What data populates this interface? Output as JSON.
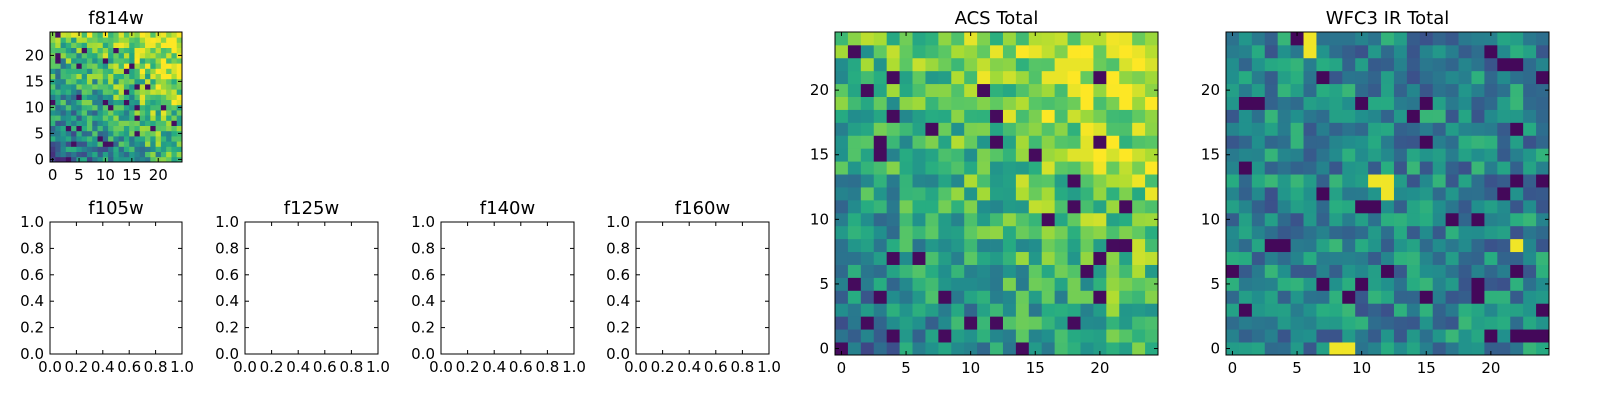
{
  "chart_data": [
    {
      "id": "f814w",
      "type": "heatmap",
      "title": "f814w",
      "grid_size": [
        25,
        25
      ],
      "xlim": [
        -0.5,
        24.5
      ],
      "ylim": [
        -0.5,
        24.5
      ],
      "xticks": [
        0,
        5,
        10,
        15,
        20
      ],
      "yticks": [
        0,
        5,
        10,
        15,
        20
      ],
      "colormap": "viridis",
      "value_range": [
        0,
        1
      ],
      "origin": "lower",
      "pattern": "noisy field, brighter toward upper-right"
    },
    {
      "id": "f105w",
      "type": "empty",
      "title": "f105w",
      "xlim": [
        0,
        1
      ],
      "ylim": [
        0,
        1
      ],
      "xticks": [
        "0.0",
        "0.2",
        "0.4",
        "0.6",
        "0.8",
        "1.0"
      ],
      "yticks": [
        "0.0",
        "0.2",
        "0.4",
        "0.6",
        "0.8",
        "1.0"
      ]
    },
    {
      "id": "f125w",
      "type": "empty",
      "title": "f125w",
      "xlim": [
        0,
        1
      ],
      "ylim": [
        0,
        1
      ],
      "xticks": [
        "0.0",
        "0.2",
        "0.4",
        "0.6",
        "0.8",
        "1.0"
      ],
      "yticks": [
        "0.0",
        "0.2",
        "0.4",
        "0.6",
        "0.8",
        "1.0"
      ]
    },
    {
      "id": "f140w",
      "type": "empty",
      "title": "f140w",
      "xlim": [
        0,
        1
      ],
      "ylim": [
        0,
        1
      ],
      "xticks": [
        "0.0",
        "0.2",
        "0.4",
        "0.6",
        "0.8",
        "1.0"
      ],
      "yticks": [
        "0.0",
        "0.2",
        "0.4",
        "0.6",
        "0.8",
        "1.0"
      ]
    },
    {
      "id": "f160w",
      "type": "empty",
      "title": "f160w",
      "xlim": [
        0,
        1
      ],
      "ylim": [
        0,
        1
      ],
      "xticks": [
        "0.0",
        "0.2",
        "0.4",
        "0.6",
        "0.8",
        "1.0"
      ],
      "yticks": [
        "0.0",
        "0.2",
        "0.4",
        "0.6",
        "0.8",
        "1.0"
      ]
    },
    {
      "id": "acs-total",
      "type": "heatmap",
      "title": "ACS Total",
      "grid_size": [
        25,
        25
      ],
      "xlim": [
        -0.5,
        24.5
      ],
      "ylim": [
        -0.5,
        24.5
      ],
      "xticks": [
        0,
        5,
        10,
        15,
        20
      ],
      "yticks": [
        0,
        5,
        10,
        15,
        20
      ],
      "colormap": "viridis",
      "value_range": [
        0,
        1
      ],
      "origin": "lower",
      "pattern": "noisy field, brighter toward upper-right, bright cells near x=17-19, y=22"
    },
    {
      "id": "wfc3-ir-total",
      "type": "heatmap",
      "title": "WFC3 IR Total",
      "grid_size": [
        25,
        25
      ],
      "xlim": [
        -0.5,
        24.5
      ],
      "ylim": [
        -0.5,
        24.5
      ],
      "xticks": [
        0,
        5,
        10,
        15,
        20
      ],
      "yticks": [
        0,
        5,
        10,
        15,
        20
      ],
      "colormap": "viridis",
      "value_range": [
        0,
        1
      ],
      "origin": "lower",
      "pattern": "noisy mid-range field with bright cells near (6,24), (12,12), (22,8), (9,0)"
    }
  ]
}
